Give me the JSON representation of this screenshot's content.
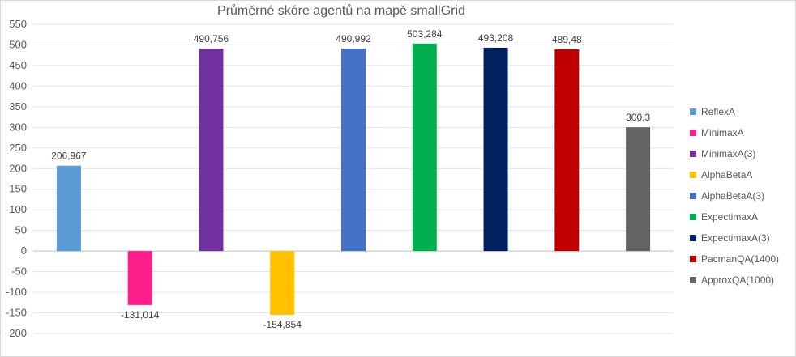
{
  "chart_data": {
    "type": "bar",
    "title": "Průměrné skóre agentů na mapě smallGrid",
    "xlabel": "",
    "ylabel": "",
    "ylim": [
      -200,
      550
    ],
    "yticks": [
      550,
      500,
      450,
      400,
      350,
      300,
      250,
      200,
      150,
      100,
      50,
      0,
      -50,
      -100,
      -150,
      -200
    ],
    "grid": true,
    "legend": "right",
    "series": [
      {
        "name": "ReflexA",
        "value": 206.967,
        "label": "206,967",
        "color": "#5b9bd5"
      },
      {
        "name": "MinimaxA",
        "value": -131.014,
        "label": "-131,014",
        "color": "#ff1e8c"
      },
      {
        "name": "MinimaxA(3)",
        "value": 490.756,
        "label": "490,756",
        "color": "#7030a0"
      },
      {
        "name": "AlphaBetaA",
        "value": -154.854,
        "label": "-154,854",
        "color": "#ffc000"
      },
      {
        "name": "AlphaBetaA(3)",
        "value": 490.992,
        "label": "490,992",
        "color": "#4472c4"
      },
      {
        "name": "ExpectimaxA",
        "value": 503.284,
        "label": "503,284",
        "color": "#00b050"
      },
      {
        "name": "ExpectimaxA(3)",
        "value": 493.208,
        "label": "493,208",
        "color": "#002060"
      },
      {
        "name": "PacmanQA(1400)",
        "value": 489.48,
        "label": "489,48",
        "color": "#c00000"
      },
      {
        "name": "ApproxQA(1000)",
        "value": 300.3,
        "label": "300,3",
        "color": "#636363"
      }
    ]
  }
}
